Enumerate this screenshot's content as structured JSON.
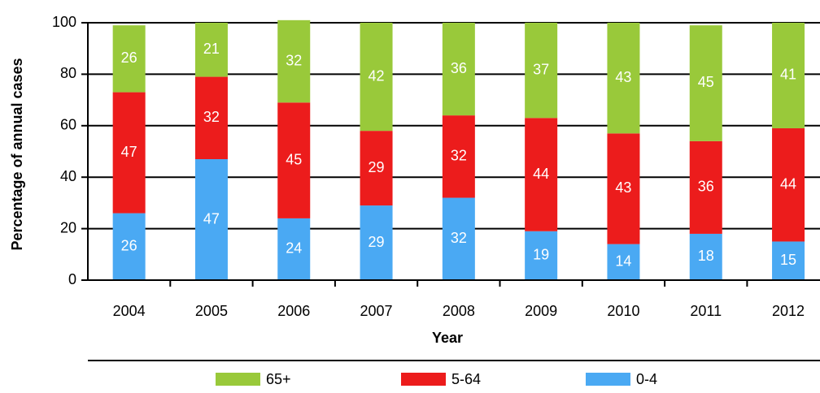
{
  "chart_data": {
    "type": "stacked-bar",
    "x_label": "Year",
    "y_label": "Percentage of annual cases",
    "categories": [
      "2004",
      "2005",
      "2006",
      "2007",
      "2008",
      "2009",
      "2010",
      "2011",
      "2012"
    ],
    "series": [
      {
        "name": "65+",
        "color": "#99c93a",
        "values": [
          26,
          21,
          32,
          42,
          36,
          37,
          43,
          45,
          41
        ]
      },
      {
        "name": "5-64",
        "color": "#ec1c1c",
        "values": [
          47,
          32,
          45,
          29,
          32,
          44,
          43,
          36,
          44
        ]
      },
      {
        "name": "0-4",
        "color": "#4aa9f3",
        "values": [
          26,
          47,
          24,
          29,
          32,
          19,
          14,
          18,
          15
        ]
      }
    ],
    "ylim": [
      0,
      100
    ],
    "yticks": [
      0,
      20,
      40,
      60,
      80,
      100
    ],
    "grid": true
  }
}
